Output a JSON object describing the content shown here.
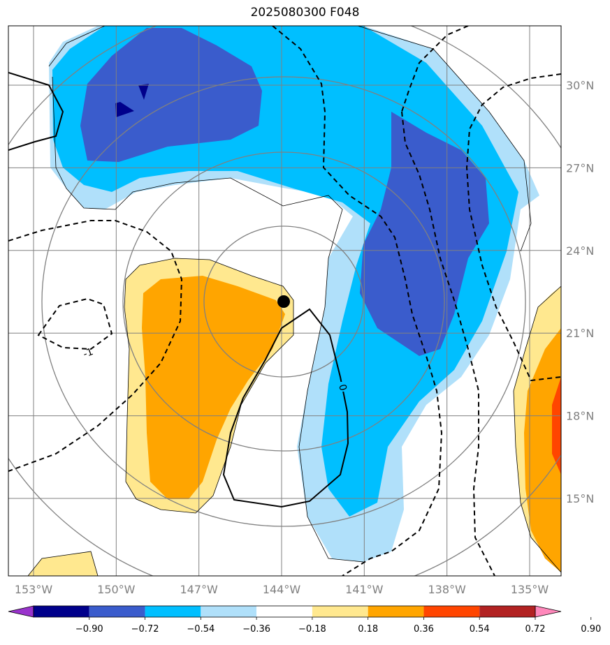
{
  "chart_data": {
    "type": "map-contour",
    "title": "2025080300 F048",
    "lon_ticks": [
      "153°W",
      "150°W",
      "147°W",
      "144°W",
      "141°W",
      "138°W",
      "135°W"
    ],
    "lat_ticks": [
      "30°N",
      "27°N",
      "24°N",
      "21°N",
      "18°N",
      "15°N"
    ],
    "lon_values": [
      -153,
      -150,
      -147,
      -144,
      -141,
      -138,
      -135
    ],
    "lat_values": [
      30,
      27,
      24,
      21,
      18,
      15
    ],
    "lon_range": [
      -154,
      -134
    ],
    "lat_range": [
      12.5,
      32.5
    ],
    "center_marker": {
      "lon": -144.0,
      "lat": 22.1
    },
    "colorbar": {
      "levels": [
        -0.9,
        -0.72,
        -0.54,
        -0.36,
        -0.18,
        0.18,
        0.36,
        0.54,
        0.72,
        0.9
      ],
      "labels": [
        "−0.90",
        "−0.72",
        "−0.54",
        "−0.36",
        "−0.18",
        "0.18",
        "0.36",
        "0.54",
        "0.72",
        "0.90"
      ],
      "colors": [
        "#9933cc",
        "#00008b",
        "#3a5ccc",
        "#00bfff",
        "#b0e0fa",
        "#ffffff",
        "#ffe88f",
        "#ffa500",
        "#ff4500",
        "#b22222",
        "#ff88bb"
      ],
      "extend": "both"
    },
    "contour_labels": [
      "-1",
      "0"
    ]
  }
}
